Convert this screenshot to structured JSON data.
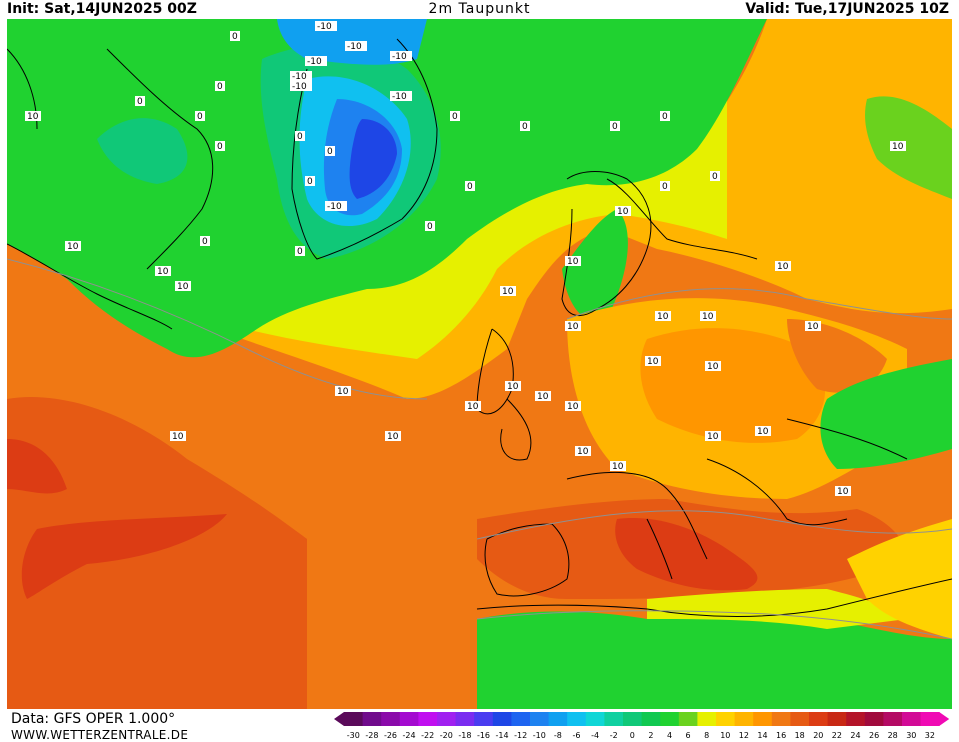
{
  "header": {
    "init": "Init: Sat,14JUN2025 00Z",
    "title": "2m Taupunkt",
    "valid": "Valid: Tue,17JUN2025 10Z"
  },
  "footer": {
    "data_source": "Data: GFS OPER 1.000°",
    "website": "WWW.WETTERZENTRALE.DE"
  },
  "legend": {
    "ticks": [
      "-30",
      "-28",
      "-26",
      "-24",
      "-22",
      "-20",
      "-18",
      "-16",
      "-14",
      "-12",
      "-10",
      "-8",
      "-6",
      "-4",
      "-2",
      "0",
      "2",
      "4",
      "6",
      "8",
      "10",
      "12",
      "14",
      "16",
      "18",
      "20",
      "22",
      "24",
      "26",
      "28",
      "30",
      "32"
    ],
    "colors": [
      "#5a0a5a",
      "#700b8c",
      "#8a0aaa",
      "#a40ad0",
      "#c00ef0",
      "#a020f0",
      "#7a2cf0",
      "#4a3cf0",
      "#1e46e6",
      "#1e64f0",
      "#1e82f0",
      "#10a0f0",
      "#10c0f0",
      "#10d6d6",
      "#10d0a0",
      "#10c878",
      "#10c850",
      "#20d230",
      "#6ad21e",
      "#e6f000",
      "#ffd200",
      "#ffb400",
      "#ff9600",
      "#f07814",
      "#e65a14",
      "#dc3c14",
      "#c82814",
      "#b41428",
      "#a00a3c",
      "#b40a64",
      "#d20a96",
      "#f00ab4"
    ]
  },
  "map": {
    "contour_labels": [
      {
        "t": "-10"
      },
      {
        "t": "-10"
      },
      {
        "t": "-10"
      },
      {
        "t": "-10"
      },
      {
        "t": "-10"
      },
      {
        "t": "-10"
      },
      {
        "t": "-10"
      },
      {
        "t": "-10"
      },
      {
        "t": "0"
      },
      {
        "t": "0"
      },
      {
        "t": "0"
      },
      {
        "t": "0"
      },
      {
        "t": "0"
      },
      {
        "t": "0"
      },
      {
        "t": "0"
      },
      {
        "t": "0"
      },
      {
        "t": "0"
      },
      {
        "t": "0"
      },
      {
        "t": "0"
      },
      {
        "t": "0"
      },
      {
        "t": "0"
      },
      {
        "t": "0"
      },
      {
        "t": "0"
      },
      {
        "t": "0"
      },
      {
        "t": "0"
      },
      {
        "t": "0"
      },
      {
        "t": "10"
      },
      {
        "t": "10"
      },
      {
        "t": "10"
      },
      {
        "t": "10"
      },
      {
        "t": "10"
      },
      {
        "t": "10"
      },
      {
        "t": "10"
      },
      {
        "t": "10"
      },
      {
        "t": "10"
      },
      {
        "t": "10"
      },
      {
        "t": "10"
      },
      {
        "t": "10"
      },
      {
        "t": "10"
      },
      {
        "t": "10"
      },
      {
        "t": "10"
      },
      {
        "t": "10"
      },
      {
        "t": "10"
      },
      {
        "t": "10"
      },
      {
        "t": "10"
      },
      {
        "t": "10"
      },
      {
        "t": "10"
      },
      {
        "t": "10"
      },
      {
        "t": "10"
      },
      {
        "t": "10"
      },
      {
        "t": "10"
      },
      {
        "t": "10"
      },
      {
        "t": "10"
      }
    ]
  }
}
